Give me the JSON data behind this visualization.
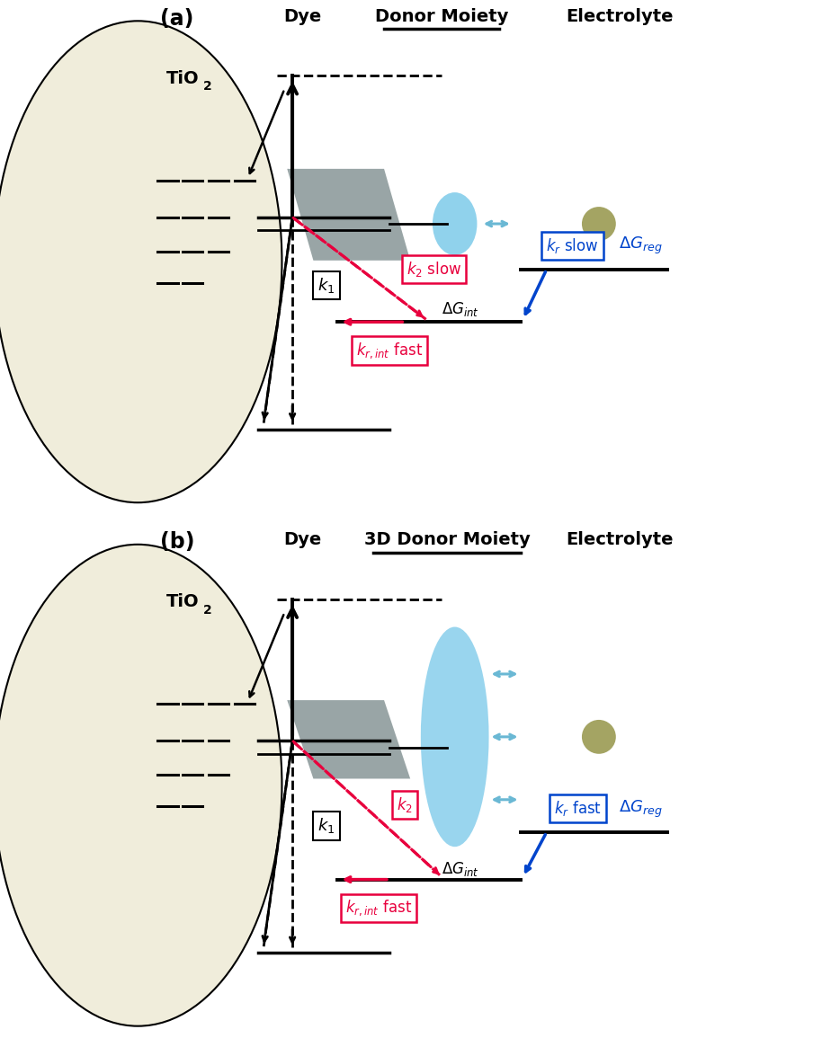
{
  "colors": {
    "black": "#000000",
    "red": "#e8003d",
    "blue": "#0044cc",
    "gray_shape": "#6e7f80",
    "blue_shape_light": "#87ceeb",
    "olive_shape": "#9a9a52",
    "tio2_fill": "#f0eddb",
    "tio2_edge": "#c8c4a8",
    "background": "#ffffff",
    "light_blue_arrow": "#6ab8d4"
  },
  "text": {
    "panel_a_label": "(a)",
    "panel_b_label": "(b)",
    "tio2": "TiO",
    "tio2_sub": "2",
    "dye": "Dye",
    "donor_moiety_a": "Donor Moiety",
    "donor_moiety_b": "3D Donor Moiety",
    "electrolyte": "Electrolyte",
    "k1": "k",
    "k1_sub": "1",
    "k2_slow": "k",
    "k2_slow_sub": "2",
    "k2_slow_extra": " slow",
    "k2_b": "k",
    "k2_b_sub": "2",
    "kr_int": "k",
    "kr_int_sub": "r,int",
    "kr_int_extra": " fast",
    "kr_slow": "k",
    "kr_slow_sub": "r",
    "kr_slow_extra": " slow",
    "kr_fast": "k",
    "kr_fast_sub": "r",
    "kr_fast_extra": " fast",
    "dg_int": "ΔG",
    "dg_int_sub": "int",
    "dg_reg": "ΔG",
    "dg_reg_sub": "reg"
  }
}
